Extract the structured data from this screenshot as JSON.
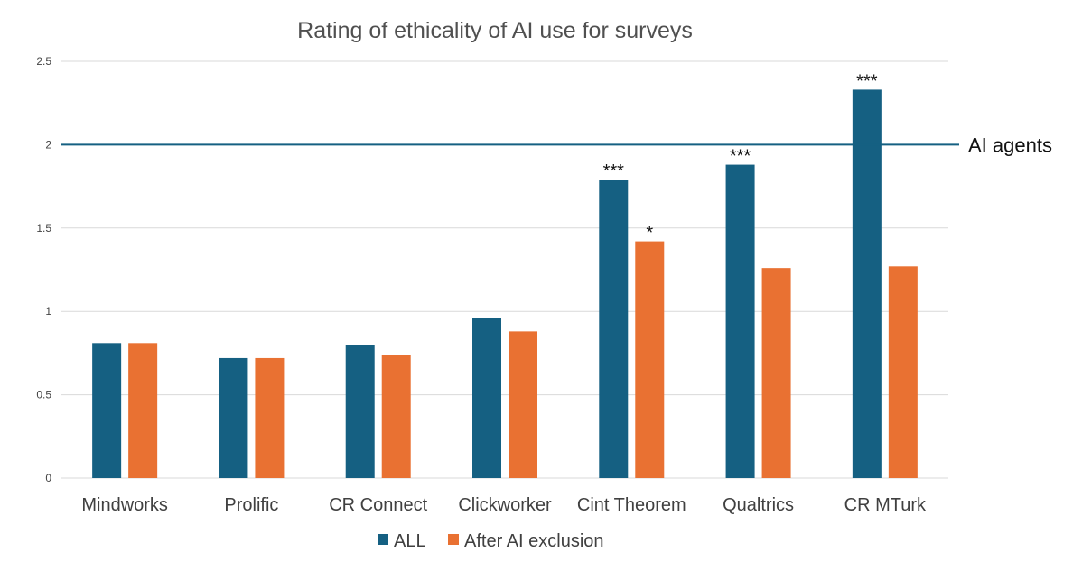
{
  "chart_data": {
    "type": "bar",
    "title": "Rating of ethicality of AI use for surveys",
    "xlabel": "",
    "ylabel": "",
    "ylim": [
      0,
      2.5
    ],
    "yticks": [
      "0",
      "0.5",
      "1",
      "1.5",
      "2",
      "2.5"
    ],
    "grid": true,
    "legend_position": "bottom",
    "categories": [
      "Mindworks",
      "Prolific",
      "CR Connect",
      "Clickworker",
      "Cint Theorem",
      "Qualtrics",
      "CR MTurk"
    ],
    "series": [
      {
        "name": "ALL",
        "color": "#156082",
        "values": [
          0.81,
          0.72,
          0.8,
          0.96,
          1.79,
          1.88,
          2.33
        ],
        "annotations": [
          "",
          "",
          "",
          "",
          "***",
          "***",
          "***"
        ]
      },
      {
        "name": "After AI exclusion",
        "color": "#E97132",
        "values": [
          0.81,
          0.72,
          0.74,
          0.88,
          1.42,
          1.26,
          1.27
        ],
        "annotations": [
          "",
          "",
          "",
          "",
          "*",
          "",
          ""
        ]
      }
    ],
    "reference_line": {
      "value": 2,
      "label": "AI agents",
      "color": "#156082"
    }
  }
}
